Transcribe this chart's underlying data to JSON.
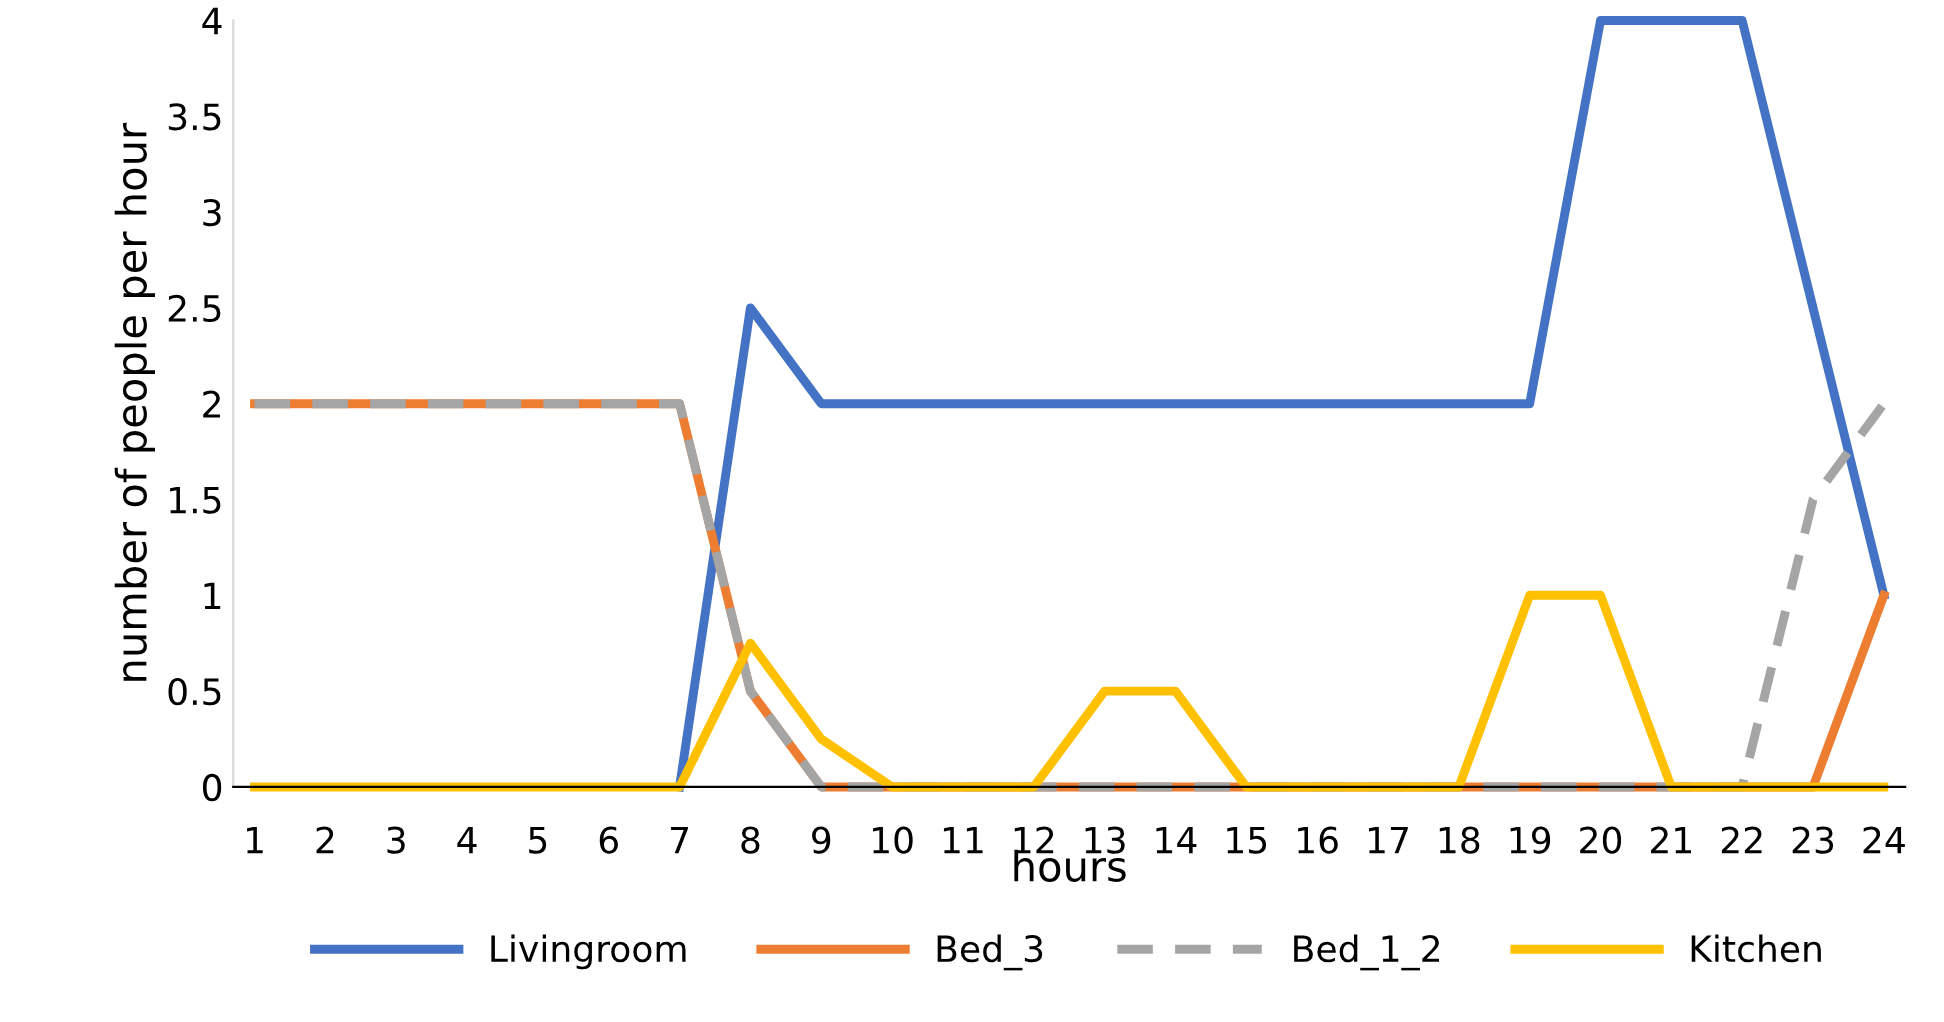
{
  "chart_data": {
    "type": "line",
    "xlabel": "hours",
    "ylabel": "number of people per hour",
    "categories": [
      "1",
      "2",
      "3",
      "4",
      "5",
      "6",
      "7",
      "8",
      "9",
      "10",
      "11",
      "12",
      "13",
      "14",
      "15",
      "16",
      "17",
      "18",
      "19",
      "20",
      "21",
      "22",
      "23",
      "24"
    ],
    "series": [
      {
        "name": "Livingroom",
        "color": "#4472c4",
        "values": [
          null,
          null,
          null,
          null,
          null,
          null,
          0,
          2.5,
          2,
          2,
          2,
          2,
          2,
          2,
          2,
          2,
          2,
          2,
          2,
          4,
          4,
          4,
          2.5,
          1
        ]
      },
      {
        "name": "Bed_3",
        "color": "#ed7d31",
        "values": [
          2,
          2,
          2,
          2,
          2,
          2,
          2,
          0.5,
          0,
          0,
          0,
          0,
          0,
          0,
          0,
          0,
          0,
          0,
          0,
          0,
          0,
          0,
          0,
          1
        ]
      },
      {
        "name": "Bed_1_2",
        "color": "#a5a5a5",
        "line_style": "dashed",
        "values": [
          2,
          2,
          2,
          2,
          2,
          2,
          2,
          0.5,
          0,
          0,
          0,
          0,
          0,
          0,
          0,
          0,
          0,
          0,
          0,
          0,
          0,
          0,
          1.5,
          2
        ]
      },
      {
        "name": "Kitchen",
        "color": "#ffc000",
        "values": [
          0,
          0,
          0,
          0,
          0,
          0,
          0,
          0.75,
          0.25,
          0,
          0,
          0,
          0.5,
          0.5,
          0,
          0,
          0,
          0,
          1,
          1,
          0,
          0,
          0,
          0
        ]
      }
    ],
    "ylim": [
      0,
      4
    ],
    "yticks": [
      0,
      {
        "value": 0.5,
        "label": "0.5"
      },
      1,
      {
        "value": 1.5,
        "label": "1.5"
      },
      2,
      {
        "value": 2.5,
        "label": "2.5"
      },
      3,
      {
        "value": 3.5,
        "label": "3.5"
      },
      4
    ],
    "grid": false,
    "legend": "bottom",
    "line_style": "solid",
    "marker": "none"
  }
}
